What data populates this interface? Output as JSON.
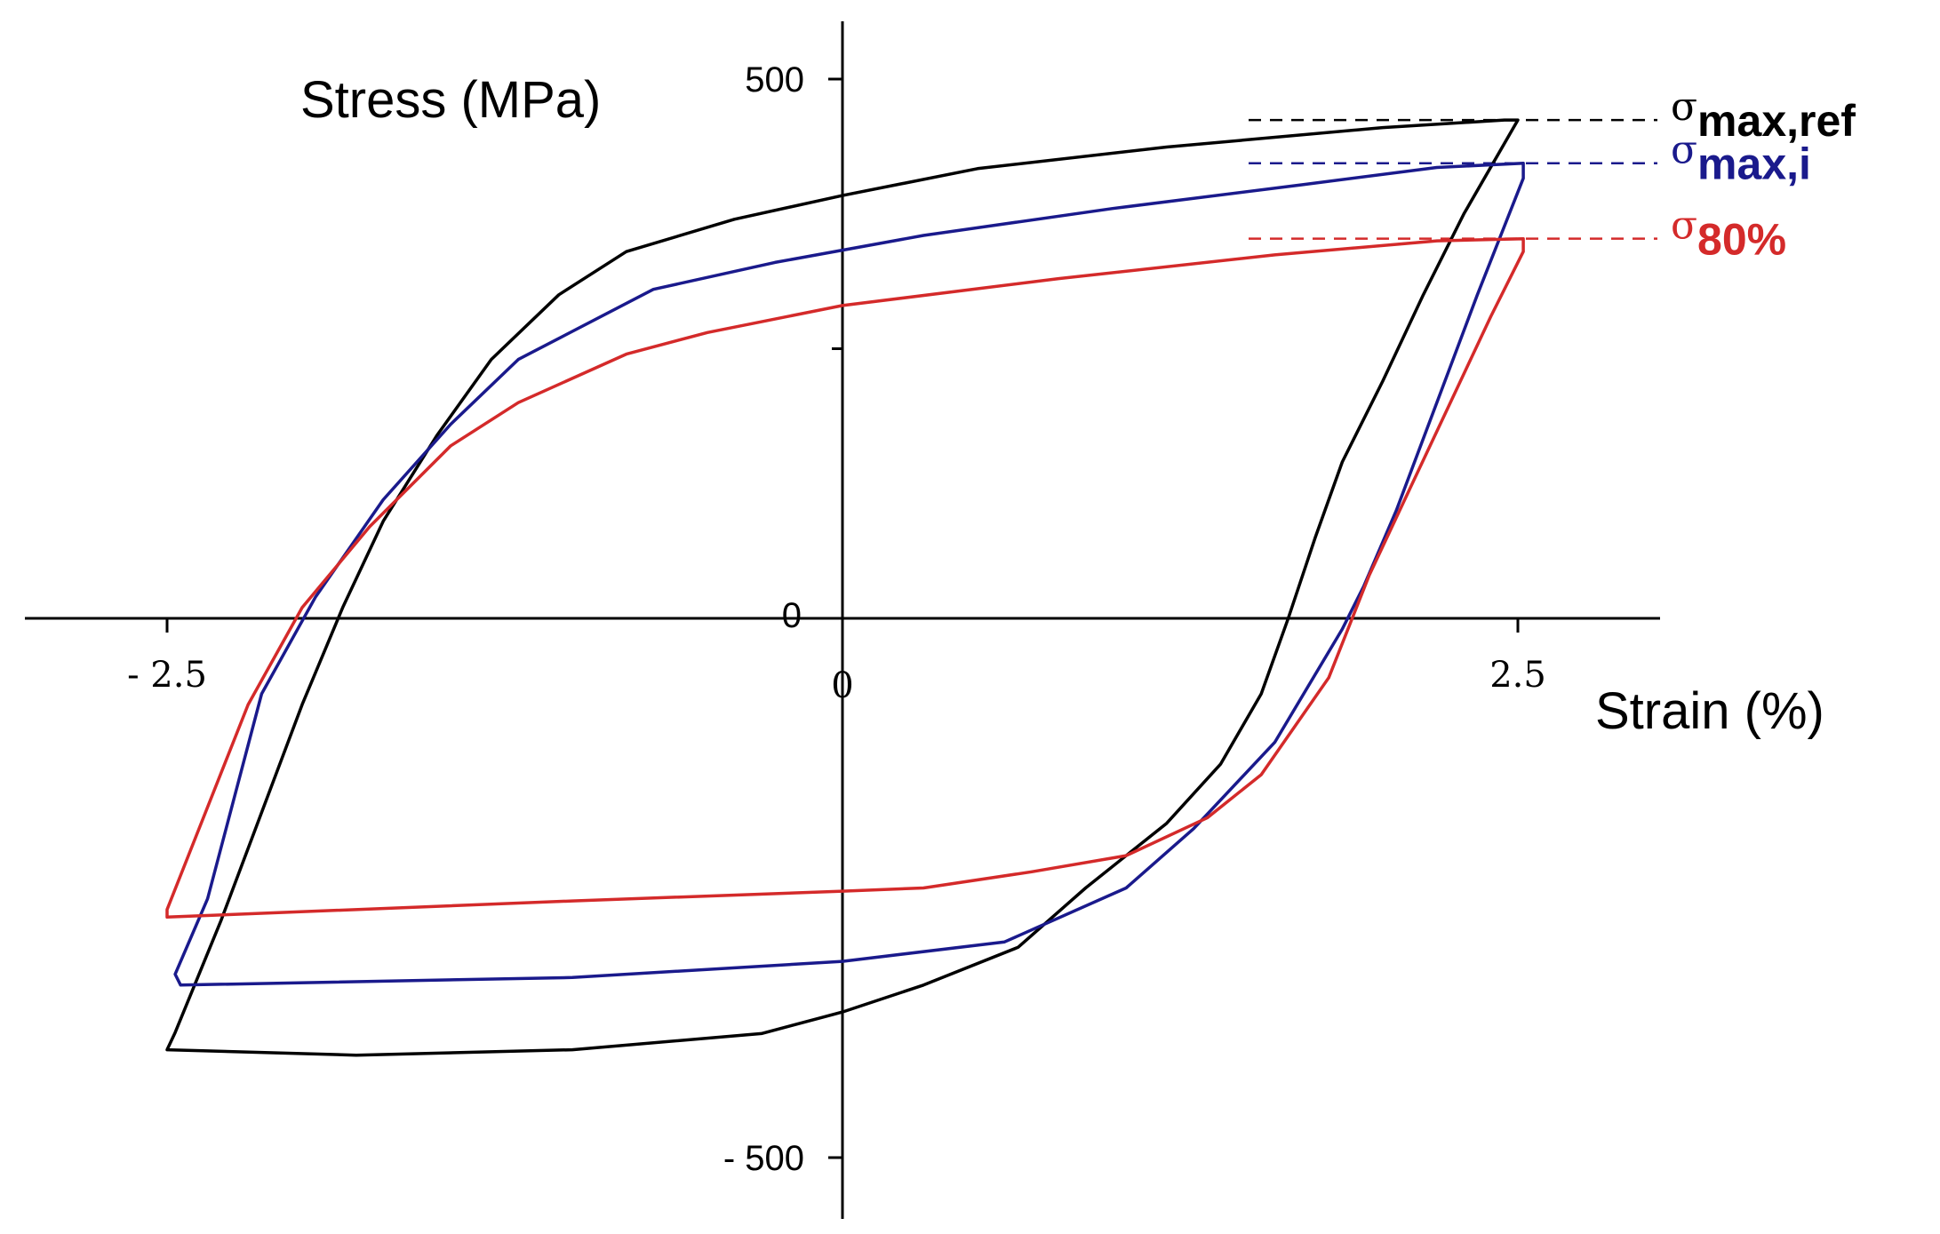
{
  "chart_data": {
    "type": "line",
    "xlabel": "Strain (%)",
    "ylabel": "Stress (MPa)",
    "xlim": [
      -3.0,
      3.0
    ],
    "ylim": [
      -550,
      550
    ],
    "x_ticks": [
      {
        "value": -2.5,
        "label": "- 2.5"
      },
      {
        "value": 0,
        "label": "0"
      },
      {
        "value": 2.5,
        "label": "2.5"
      }
    ],
    "y_ticks": [
      {
        "value": 500,
        "label": "500"
      },
      {
        "value": 0,
        "label": "0"
      },
      {
        "value": -500,
        "label": "- 500"
      }
    ],
    "y_minor_ticks": [
      250
    ],
    "annotations": [
      {
        "sigma": "σ",
        "sub": "max,ref",
        "y": 462,
        "color": "#000000"
      },
      {
        "sigma": "σ",
        "sub": "max,i",
        "y": 422,
        "color": "#1a1a8c"
      },
      {
        "sigma": "σ",
        "sub": "80%",
        "y": 352,
        "color": "#d42a2a"
      }
    ],
    "series": [
      {
        "color": "#000000",
        "points": [
          [
            2.5,
            462
          ],
          [
            2.3,
            375
          ],
          [
            2.15,
            300
          ],
          [
            2.0,
            220
          ],
          [
            1.85,
            145
          ],
          [
            1.75,
            75
          ],
          [
            1.65,
            0
          ],
          [
            1.55,
            -70
          ],
          [
            1.4,
            -135
          ],
          [
            1.2,
            -190
          ],
          [
            0.9,
            -250
          ],
          [
            0.65,
            -305
          ],
          [
            0.3,
            -340
          ],
          [
            0.0,
            -365
          ],
          [
            -0.3,
            -385
          ],
          [
            -1.0,
            -400
          ],
          [
            -1.8,
            -405
          ],
          [
            -2.5,
            -400
          ],
          [
            -2.47,
            -384
          ],
          [
            -2.3,
            -280
          ],
          [
            -2.15,
            -180
          ],
          [
            -2.0,
            -80
          ],
          [
            -1.85,
            10
          ],
          [
            -1.7,
            90
          ],
          [
            -1.5,
            170
          ],
          [
            -1.3,
            240
          ],
          [
            -1.05,
            300
          ],
          [
            -0.8,
            340
          ],
          [
            -0.4,
            370
          ],
          [
            0,
            392
          ],
          [
            0.5,
            417
          ],
          [
            1.2,
            437
          ],
          [
            2.0,
            455
          ],
          [
            2.45,
            462
          ],
          [
            2.5,
            462
          ]
        ]
      },
      {
        "color": "#1a1a8c",
        "points": [
          [
            2.52,
            422
          ],
          [
            2.52,
            408
          ],
          [
            2.35,
            300
          ],
          [
            2.2,
            200
          ],
          [
            2.05,
            100
          ],
          [
            1.93,
            30
          ],
          [
            1.85,
            -10
          ],
          [
            1.6,
            -115
          ],
          [
            1.3,
            -195
          ],
          [
            1.05,
            -250
          ],
          [
            0.6,
            -300
          ],
          [
            0.0,
            -318
          ],
          [
            -1.0,
            -333
          ],
          [
            -2.45,
            -340
          ],
          [
            -2.47,
            -330
          ],
          [
            -2.35,
            -260
          ],
          [
            -2.25,
            -165
          ],
          [
            -2.15,
            -70
          ],
          [
            -1.95,
            20
          ],
          [
            -1.7,
            110
          ],
          [
            -1.45,
            180
          ],
          [
            -1.2,
            240
          ],
          [
            -0.7,
            305
          ],
          [
            -0.25,
            330
          ],
          [
            0.3,
            355
          ],
          [
            1.0,
            380
          ],
          [
            1.7,
            402
          ],
          [
            2.2,
            418
          ],
          [
            2.52,
            422
          ]
        ]
      },
      {
        "color": "#d42a2a",
        "points": [
          [
            2.52,
            352
          ],
          [
            2.52,
            340
          ],
          [
            2.4,
            280
          ],
          [
            2.25,
            200
          ],
          [
            2.1,
            120
          ],
          [
            1.95,
            40
          ],
          [
            1.8,
            -55
          ],
          [
            1.55,
            -145
          ],
          [
            1.35,
            -185
          ],
          [
            1.05,
            -220
          ],
          [
            0.7,
            -235
          ],
          [
            0.3,
            -250
          ],
          [
            0.0,
            -253
          ],
          [
            -1.0,
            -262
          ],
          [
            -2.5,
            -277
          ],
          [
            -2.5,
            -270
          ],
          [
            -2.2,
            -80
          ],
          [
            -2.0,
            10
          ],
          [
            -1.75,
            85
          ],
          [
            -1.45,
            160
          ],
          [
            -1.2,
            200
          ],
          [
            -0.8,
            245
          ],
          [
            -0.5,
            265
          ],
          [
            0,
            290
          ],
          [
            0.8,
            315
          ],
          [
            1.6,
            337
          ],
          [
            2.2,
            350
          ],
          [
            2.52,
            352
          ]
        ]
      }
    ]
  }
}
